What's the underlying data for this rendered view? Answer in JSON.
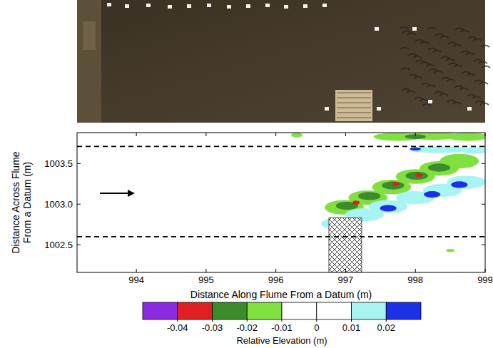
{
  "chart_data": {
    "type": "contour",
    "x_label": "Distance Along Flume From a Datum (m)",
    "y_label": "Distance Across Flume From a Datum (m)",
    "xlim": [
      993.15,
      999.0
    ],
    "ylim": [
      1002.16,
      1003.88
    ],
    "xticks": [
      994,
      995,
      996,
      997,
      998,
      999
    ],
    "yticks": [
      1002.5,
      {
        "value": 1003,
        "label": "1003.0"
      },
      1003.5
    ],
    "reference_lines": [
      1002.6,
      1003.71
    ],
    "obstacle": {
      "x": [
        996.76,
        997.23
      ],
      "y": [
        1002.16,
        1002.83
      ]
    },
    "patches": [
      {
        "x": 996.98,
        "y": 1002.96,
        "rx": 0.28,
        "ry": 0.09,
        "value": -0.015
      },
      {
        "x": 997.32,
        "y": 1003.08,
        "rx": 0.28,
        "ry": 0.09,
        "value": -0.015
      },
      {
        "x": 997.66,
        "y": 1003.21,
        "rx": 0.28,
        "ry": 0.09,
        "value": -0.015
      },
      {
        "x": 998.0,
        "y": 1003.34,
        "rx": 0.28,
        "ry": 0.09,
        "value": -0.015
      },
      {
        "x": 998.34,
        "y": 1003.44,
        "rx": 0.28,
        "ry": 0.09,
        "value": -0.015
      },
      {
        "x": 998.63,
        "y": 1003.53,
        "rx": 0.28,
        "ry": 0.09,
        "value": -0.015
      },
      {
        "x": 997.75,
        "y": 1003.83,
        "rx": 0.35,
        "ry": 0.05,
        "value": -0.015
      },
      {
        "x": 998.25,
        "y": 1003.84,
        "rx": 0.35,
        "ry": 0.05,
        "value": -0.015
      },
      {
        "x": 998.75,
        "y": 1003.83,
        "rx": 0.3,
        "ry": 0.05,
        "value": -0.015
      },
      {
        "x": 998.5,
        "y": 1002.43,
        "rx": 0.06,
        "ry": 0.02,
        "value": -0.015
      },
      {
        "x": 996.3,
        "y": 1003.85,
        "rx": 0.08,
        "ry": 0.03,
        "value": -0.015
      },
      {
        "x": 996.93,
        "y": 1002.76,
        "rx": 0.28,
        "ry": 0.08,
        "value": 0.015
      },
      {
        "x": 997.27,
        "y": 1002.87,
        "rx": 0.28,
        "ry": 0.08,
        "value": 0.015
      },
      {
        "x": 997.61,
        "y": 1002.97,
        "rx": 0.28,
        "ry": 0.08,
        "value": 0.015
      },
      {
        "x": 998.0,
        "y": 1003.08,
        "rx": 0.28,
        "ry": 0.08,
        "value": 0.015
      },
      {
        "x": 998.39,
        "y": 1003.17,
        "rx": 0.28,
        "ry": 0.08,
        "value": 0.015
      },
      {
        "x": 998.73,
        "y": 1003.27,
        "rx": 0.28,
        "ry": 0.08,
        "value": 0.015
      },
      {
        "x": 998.35,
        "y": 1003.67,
        "rx": 0.45,
        "ry": 0.04,
        "value": 0.015
      },
      {
        "x": 998.85,
        "y": 1003.66,
        "rx": 0.2,
        "ry": 0.04,
        "value": 0.015
      },
      {
        "x": 997.02,
        "y": 1002.98,
        "rx": 0.16,
        "ry": 0.05,
        "value": -0.025
      },
      {
        "x": 997.34,
        "y": 1003.1,
        "rx": 0.16,
        "ry": 0.05,
        "value": -0.025
      },
      {
        "x": 997.68,
        "y": 1003.23,
        "rx": 0.16,
        "ry": 0.05,
        "value": -0.025
      },
      {
        "x": 998.02,
        "y": 1003.35,
        "rx": 0.16,
        "ry": 0.05,
        "value": -0.025
      },
      {
        "x": 998.34,
        "y": 1003.45,
        "rx": 0.16,
        "ry": 0.05,
        "value": -0.025
      },
      {
        "x": 998.0,
        "y": 1003.83,
        "rx": 0.15,
        "ry": 0.03,
        "value": -0.025
      },
      {
        "x": 996.96,
        "y": 1002.74,
        "rx": 0.12,
        "ry": 0.04,
        "value": 0.025
      },
      {
        "x": 997.61,
        "y": 1002.95,
        "rx": 0.12,
        "ry": 0.04,
        "value": 0.025
      },
      {
        "x": 998.24,
        "y": 1003.12,
        "rx": 0.12,
        "ry": 0.04,
        "value": 0.025
      },
      {
        "x": 998.63,
        "y": 1003.24,
        "rx": 0.12,
        "ry": 0.04,
        "value": 0.025
      },
      {
        "x": 998.0,
        "y": 1003.68,
        "rx": 0.08,
        "ry": 0.02,
        "value": 0.025
      },
      {
        "x": 997.15,
        "y": 1003.02,
        "rx": 0.05,
        "ry": 0.025,
        "value": -0.035
      },
      {
        "x": 997.72,
        "y": 1003.25,
        "rx": 0.05,
        "ry": 0.025,
        "value": -0.035
      },
      {
        "x": 998.05,
        "y": 1003.36,
        "rx": 0.05,
        "ry": 0.025,
        "value": -0.035
      }
    ],
    "colorbar": {
      "label": "Relative Elevation (m)",
      "bounds": [
        -0.05,
        -0.04,
        -0.03,
        -0.02,
        -0.01,
        0,
        0.01,
        0.02,
        0.03
      ],
      "colors": [
        "#8a2be2",
        "#e02020",
        "#3c8c2c",
        "#80e040",
        "#ffffff",
        "#ffffff",
        "#a8f4f4",
        "#1c30e8"
      ],
      "ticks": [
        -0.04,
        -0.03,
        -0.02,
        -0.01,
        0,
        0.01,
        0.02
      ]
    }
  }
}
